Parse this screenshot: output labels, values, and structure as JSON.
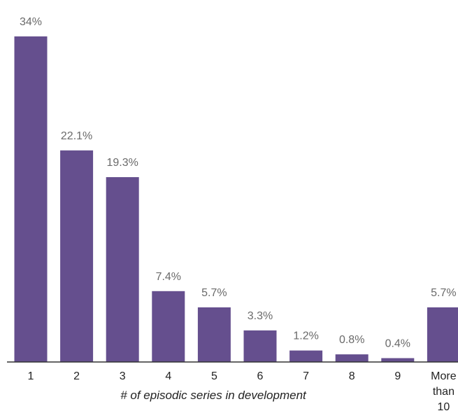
{
  "chart_data": {
    "type": "bar",
    "categories": [
      "1",
      "2",
      "3",
      "4",
      "5",
      "6",
      "7",
      "8",
      "9",
      "More than 10"
    ],
    "values": [
      34,
      22.1,
      19.3,
      7.4,
      5.7,
      3.3,
      1.2,
      0.8,
      0.4,
      5.7
    ],
    "value_labels": [
      "34%",
      "22.1%",
      "19.3%",
      "7.4%",
      "5.7%",
      "3.3%",
      "1.2%",
      "0.8%",
      "0.4%",
      "5.7%"
    ],
    "xlabel": "# of episodic series in development",
    "ylabel": "",
    "ylim": [
      0,
      34
    ],
    "grid": false,
    "colors": {
      "bar": "#654f8e"
    }
  }
}
